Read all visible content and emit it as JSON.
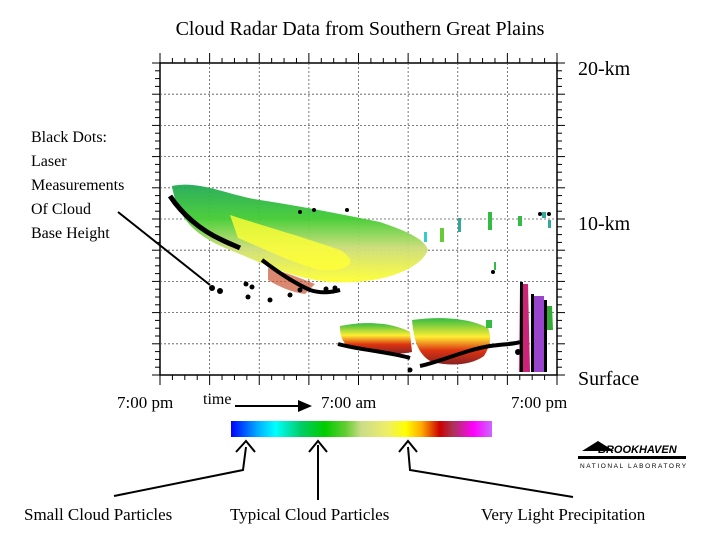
{
  "chart_data": {
    "type": "heatmap",
    "title": "Cloud Radar Data from Southern Great Plains",
    "y_labels": {
      "top": "20-km",
      "middle": "10-km",
      "bottom": "Surface"
    },
    "x_tick_labels": [
      "7:00 pm",
      "7:00 am",
      "7:00 pm"
    ],
    "time_axis_label": "time",
    "annotation_lines": [
      "Black Dots:",
      "Laser",
      "Measurements",
      "Of Cloud",
      "Base Height"
    ],
    "colorbar_captions": [
      "Small Cloud Particles",
      "Typical Cloud Particles",
      "Very Light Precipitation"
    ],
    "logo_text": "BROOKHAVEN NATIONAL LABORATORY"
  }
}
